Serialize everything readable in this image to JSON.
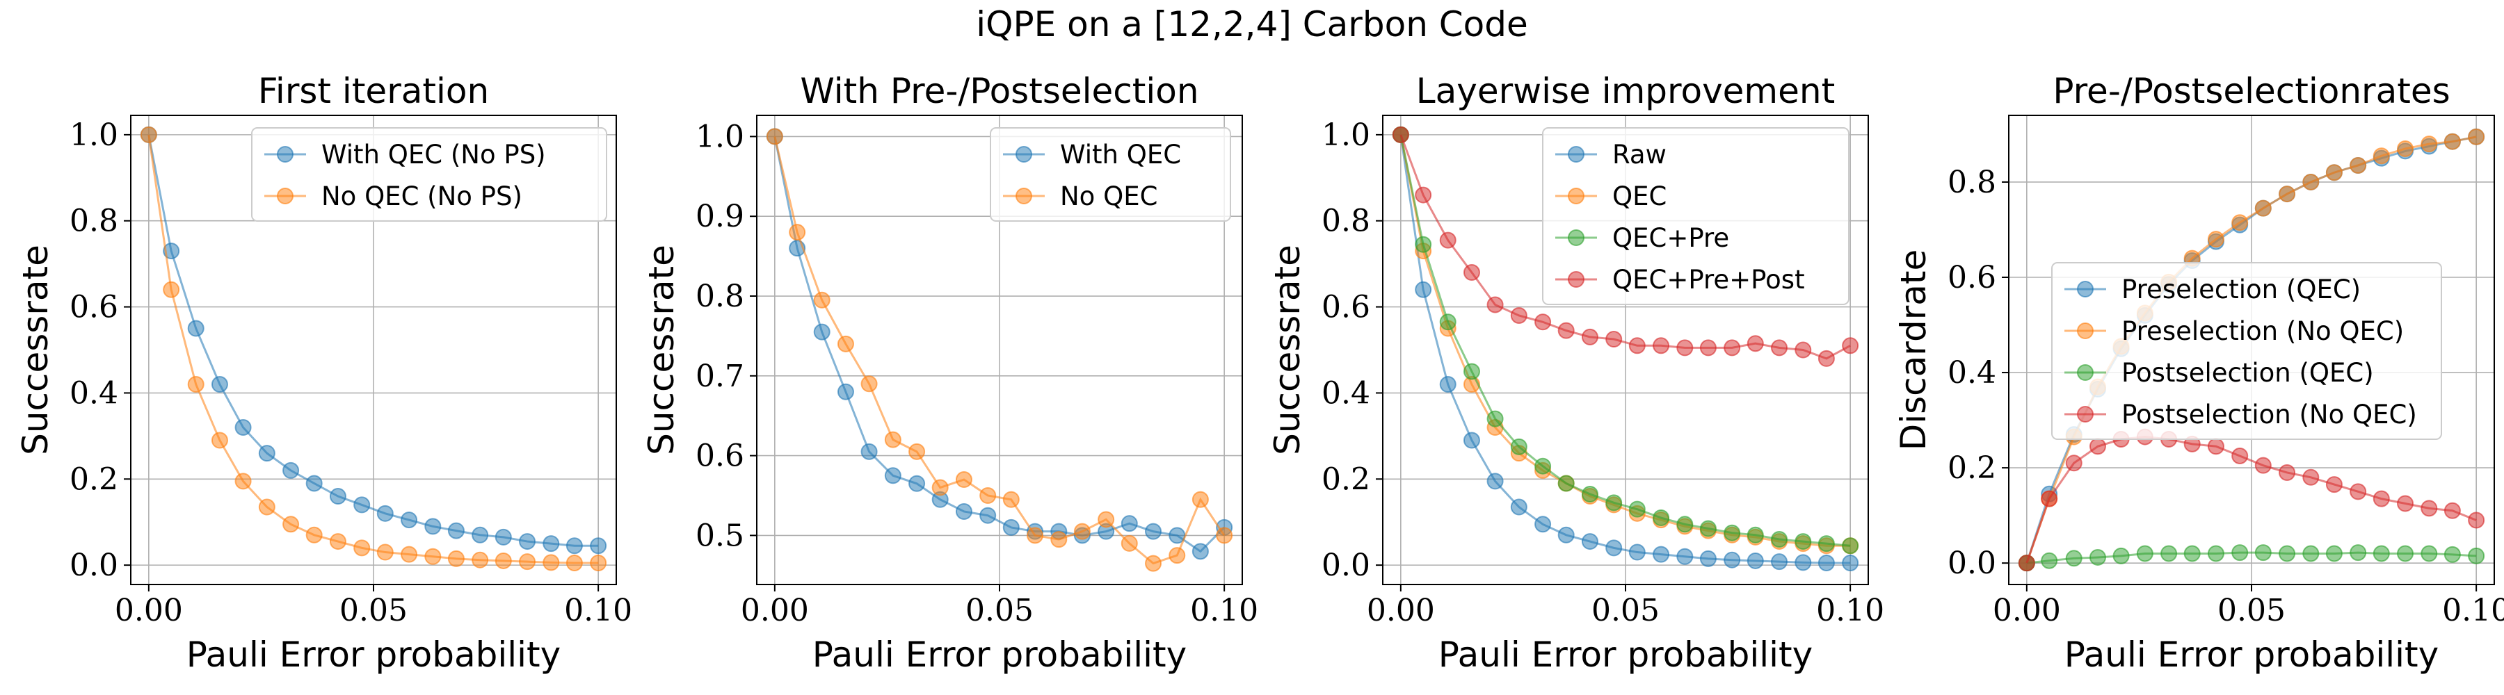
{
  "figure": {
    "title": "iQPE on a [12,2,4] Carbon Code"
  },
  "colors": {
    "blue": "#1f77b4",
    "orange": "#ff7f0e",
    "green": "#2ca02c",
    "red": "#d62728"
  },
  "chart_data": [
    {
      "type": "line",
      "title": "First iteration",
      "xlabel": "Pauli Error probability",
      "ylabel": "Successrate",
      "xlim": [
        -0.004,
        0.104
      ],
      "ylim": [
        -0.045,
        1.045
      ],
      "xticks": [
        0.0,
        0.05,
        0.1
      ],
      "xtick_labels": [
        "0.00",
        "0.05",
        "0.10"
      ],
      "yticks": [
        0.0,
        0.2,
        0.4,
        0.6,
        0.8,
        1.0
      ],
      "ytick_labels": [
        "0.0",
        "0.2",
        "0.4",
        "0.6",
        "0.8",
        "1.0"
      ],
      "grid": true,
      "legend_position": "top-right",
      "x": [
        0.0,
        0.005,
        0.0105,
        0.0158,
        0.021,
        0.0263,
        0.0316,
        0.0368,
        0.0421,
        0.0474,
        0.0526,
        0.0579,
        0.0632,
        0.0684,
        0.0737,
        0.0789,
        0.0842,
        0.0895,
        0.0947,
        0.1
      ],
      "series": [
        {
          "name": "With QEC (No PS)",
          "color": "blue",
          "values": [
            1.0,
            0.73,
            0.55,
            0.42,
            0.32,
            0.26,
            0.22,
            0.19,
            0.16,
            0.14,
            0.12,
            0.105,
            0.09,
            0.08,
            0.07,
            0.065,
            0.055,
            0.05,
            0.045,
            0.045
          ]
        },
        {
          "name": "No QEC (No PS)",
          "color": "orange",
          "values": [
            1.0,
            0.64,
            0.42,
            0.29,
            0.195,
            0.135,
            0.095,
            0.07,
            0.055,
            0.04,
            0.03,
            0.025,
            0.02,
            0.015,
            0.012,
            0.01,
            0.008,
            0.006,
            0.005,
            0.005
          ]
        }
      ]
    },
    {
      "type": "line",
      "title": "With Pre-/Postselection",
      "xlabel": "Pauli Error probability",
      "ylabel": "Successrate",
      "xlim": [
        -0.004,
        0.104
      ],
      "ylim": [
        0.4385,
        1.0265
      ],
      "xticks": [
        0.0,
        0.05,
        0.1
      ],
      "xtick_labels": [
        "0.00",
        "0.05",
        "0.10"
      ],
      "yticks": [
        0.5,
        0.6,
        0.7,
        0.8,
        0.9,
        1.0
      ],
      "ytick_labels": [
        "0.5",
        "0.6",
        "0.7",
        "0.8",
        "0.9",
        "1.0"
      ],
      "grid": true,
      "legend_position": "top-right",
      "x": [
        0.0,
        0.005,
        0.0105,
        0.0158,
        0.021,
        0.0263,
        0.0316,
        0.0368,
        0.0421,
        0.0474,
        0.0526,
        0.0579,
        0.0632,
        0.0684,
        0.0737,
        0.0789,
        0.0842,
        0.0895,
        0.0947,
        0.1
      ],
      "series": [
        {
          "name": "With QEC",
          "color": "blue",
          "values": [
            1.0,
            0.86,
            0.755,
            0.68,
            0.605,
            0.575,
            0.565,
            0.545,
            0.53,
            0.525,
            0.51,
            0.505,
            0.505,
            0.5,
            0.505,
            0.515,
            0.505,
            0.5,
            0.48,
            0.51
          ]
        },
        {
          "name": "No QEC",
          "color": "orange",
          "values": [
            1.0,
            0.88,
            0.795,
            0.74,
            0.69,
            0.62,
            0.605,
            0.56,
            0.57,
            0.55,
            0.545,
            0.5,
            0.495,
            0.505,
            0.52,
            0.49,
            0.465,
            0.475,
            0.545,
            0.5
          ]
        }
      ]
    },
    {
      "type": "line",
      "title": "Layerwise improvement",
      "xlabel": "Pauli Error probability",
      "ylabel": "Successrate",
      "xlim": [
        -0.004,
        0.104
      ],
      "ylim": [
        -0.045,
        1.045
      ],
      "xticks": [
        0.0,
        0.05,
        0.1
      ],
      "xtick_labels": [
        "0.00",
        "0.05",
        "0.10"
      ],
      "yticks": [
        0.0,
        0.2,
        0.4,
        0.6,
        0.8,
        1.0
      ],
      "ytick_labels": [
        "0.0",
        "0.2",
        "0.4",
        "0.6",
        "0.8",
        "1.0"
      ],
      "grid": true,
      "legend_position": "top-right",
      "x": [
        0.0,
        0.005,
        0.0105,
        0.0158,
        0.021,
        0.0263,
        0.0316,
        0.0368,
        0.0421,
        0.0474,
        0.0526,
        0.0579,
        0.0632,
        0.0684,
        0.0737,
        0.0789,
        0.0842,
        0.0895,
        0.0947,
        0.1
      ],
      "series": [
        {
          "name": "Raw",
          "color": "blue",
          "values": [
            1.0,
            0.64,
            0.42,
            0.29,
            0.195,
            0.135,
            0.095,
            0.07,
            0.055,
            0.04,
            0.03,
            0.025,
            0.02,
            0.015,
            0.012,
            0.01,
            0.008,
            0.006,
            0.005,
            0.005
          ]
        },
        {
          "name": "QEC",
          "color": "orange",
          "values": [
            1.0,
            0.73,
            0.55,
            0.42,
            0.32,
            0.26,
            0.22,
            0.19,
            0.16,
            0.14,
            0.12,
            0.105,
            0.09,
            0.08,
            0.07,
            0.065,
            0.055,
            0.05,
            0.045,
            0.045
          ]
        },
        {
          "name": "QEC+Pre",
          "color": "green",
          "values": [
            1.0,
            0.745,
            0.565,
            0.45,
            0.34,
            0.275,
            0.23,
            0.19,
            0.165,
            0.145,
            0.13,
            0.11,
            0.095,
            0.085,
            0.075,
            0.07,
            0.06,
            0.055,
            0.05,
            0.045
          ]
        },
        {
          "name": "QEC+Pre+Post",
          "color": "red",
          "values": [
            1.0,
            0.86,
            0.755,
            0.68,
            0.605,
            0.58,
            0.565,
            0.545,
            0.53,
            0.525,
            0.51,
            0.51,
            0.505,
            0.505,
            0.505,
            0.515,
            0.505,
            0.5,
            0.48,
            0.51
          ]
        }
      ]
    },
    {
      "type": "line",
      "title": "Pre-/Postselectionrates",
      "xlabel": "Pauli Error probability",
      "ylabel": "Discardrate",
      "xlim": [
        -0.004,
        0.104
      ],
      "ylim": [
        -0.045,
        0.94
      ],
      "xticks": [
        0.0,
        0.05,
        0.1
      ],
      "xtick_labels": [
        "0.00",
        "0.05",
        "0.10"
      ],
      "yticks": [
        0.0,
        0.2,
        0.4,
        0.6,
        0.8
      ],
      "ytick_labels": [
        "0.0",
        "0.2",
        "0.4",
        "0.6",
        "0.8"
      ],
      "grid": true,
      "legend_position": "center-right",
      "x": [
        0.0,
        0.005,
        0.0105,
        0.0158,
        0.021,
        0.0263,
        0.0316,
        0.0368,
        0.0421,
        0.0474,
        0.0526,
        0.0579,
        0.0632,
        0.0684,
        0.0737,
        0.0789,
        0.0842,
        0.0895,
        0.0947,
        0.1
      ],
      "series": [
        {
          "name": "Preselection (QEC)",
          "color": "blue",
          "values": [
            0.0,
            0.145,
            0.27,
            0.365,
            0.45,
            0.52,
            0.585,
            0.635,
            0.675,
            0.71,
            0.745,
            0.775,
            0.8,
            0.82,
            0.835,
            0.85,
            0.865,
            0.875,
            0.885,
            0.895
          ]
        },
        {
          "name": "Preselection (No QEC)",
          "color": "orange",
          "values": [
            0.0,
            0.135,
            0.265,
            0.37,
            0.455,
            0.525,
            0.59,
            0.64,
            0.68,
            0.715,
            0.745,
            0.775,
            0.8,
            0.82,
            0.835,
            0.855,
            0.87,
            0.88,
            0.885,
            0.895
          ]
        },
        {
          "name": "Postselection (QEC)",
          "color": "green",
          "values": [
            0.0,
            0.005,
            0.01,
            0.012,
            0.015,
            0.02,
            0.02,
            0.02,
            0.02,
            0.022,
            0.022,
            0.02,
            0.02,
            0.02,
            0.022,
            0.02,
            0.02,
            0.02,
            0.018,
            0.015
          ]
        },
        {
          "name": "Postselection (No QEC)",
          "color": "red",
          "values": [
            0.0,
            0.135,
            0.21,
            0.245,
            0.26,
            0.265,
            0.26,
            0.25,
            0.245,
            0.225,
            0.205,
            0.19,
            0.18,
            0.165,
            0.15,
            0.135,
            0.125,
            0.115,
            0.11,
            0.09
          ]
        }
      ]
    }
  ]
}
